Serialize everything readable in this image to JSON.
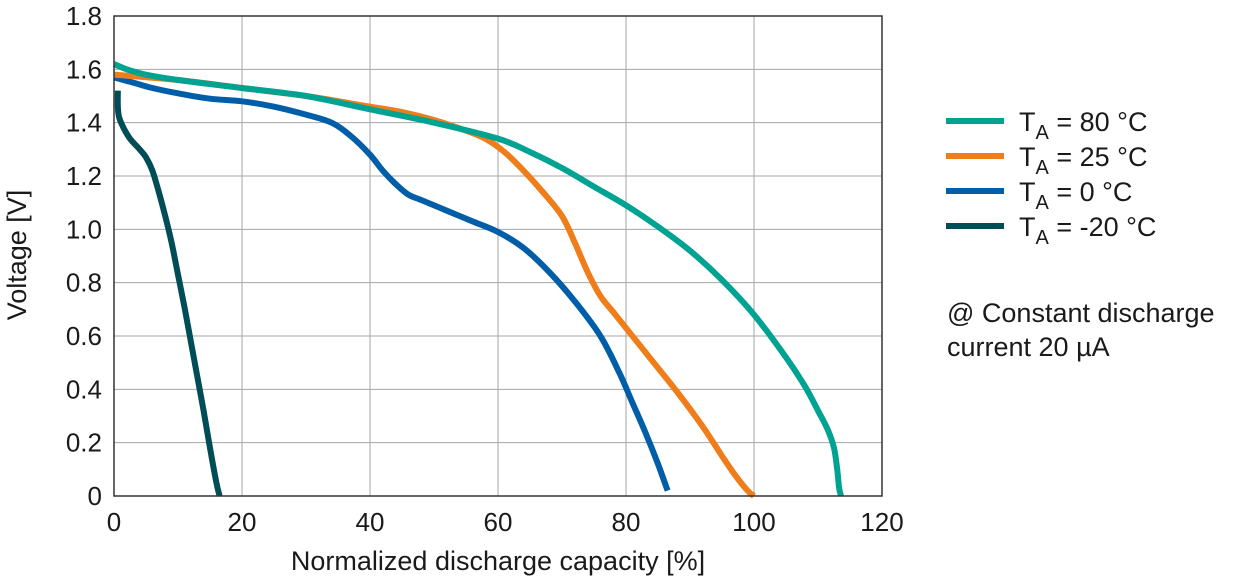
{
  "chart_data": {
    "type": "line",
    "title": "",
    "xlabel": "Normalized discharge capacity [%]",
    "ylabel": "Voltage [V]",
    "xlim": [
      0,
      120
    ],
    "ylim": [
      0,
      1.8
    ],
    "xticks": [
      0,
      20,
      40,
      60,
      80,
      100,
      120
    ],
    "yticks": [
      0,
      0.2,
      0.4,
      0.6,
      0.8,
      1.0,
      1.2,
      1.4,
      1.6,
      1.8
    ],
    "xtick_labels": [
      "0",
      "20",
      "40",
      "60",
      "80",
      "100",
      "120"
    ],
    "ytick_labels": [
      "0",
      "0.2",
      "0.4",
      "0.6",
      "0.8",
      "1.0",
      "1.2",
      "1.4",
      "1.6",
      "1.8"
    ],
    "grid": true,
    "legend_position": "right",
    "note": [
      "@ Constant discharge",
      "current 20 µA"
    ],
    "series": [
      {
        "name": "T_A = 80 °C",
        "label_main": "T",
        "label_sub": "A",
        "label_rest": " = 80 °C",
        "color": "#00a391",
        "x": [
          0,
          2,
          5,
          10,
          20,
          30,
          40,
          50,
          60,
          65,
          70,
          75,
          80,
          85,
          90,
          95,
          100,
          105,
          108,
          110,
          111.5,
          112.5,
          113,
          113.3,
          113.6
        ],
        "y": [
          1.62,
          1.6,
          1.58,
          1.56,
          1.53,
          1.5,
          1.45,
          1.4,
          1.34,
          1.29,
          1.23,
          1.16,
          1.09,
          1.01,
          0.92,
          0.81,
          0.68,
          0.52,
          0.41,
          0.32,
          0.25,
          0.18,
          0.1,
          0.03,
          0
        ],
        "smooth": true
      },
      {
        "name": "T_A = 25 °C",
        "label_main": "T",
        "label_sub": "A",
        "label_rest": " = 25 °C",
        "color": "#ef7d1a",
        "x": [
          0,
          10,
          20,
          30,
          40,
          45,
          50,
          55,
          58,
          61,
          64,
          67,
          70,
          72,
          74,
          76,
          78,
          80,
          84,
          88,
          92,
          95,
          97,
          99,
          100
        ],
        "y": [
          1.58,
          1.56,
          1.53,
          1.5,
          1.46,
          1.44,
          1.41,
          1.37,
          1.34,
          1.29,
          1.22,
          1.14,
          1.05,
          0.95,
          0.84,
          0.75,
          0.69,
          0.63,
          0.51,
          0.39,
          0.26,
          0.15,
          0.08,
          0.02,
          0
        ],
        "smooth": true
      },
      {
        "name": "T_A = 0 °C",
        "label_main": "T",
        "label_sub": "A",
        "label_rest": " = 0 °C",
        "color": "#005ea8",
        "x": [
          0,
          3,
          6,
          10,
          15,
          20,
          25,
          30,
          34,
          37,
          40,
          42,
          44,
          46,
          48,
          52,
          56,
          60,
          64,
          68,
          72,
          76,
          79,
          81,
          83,
          85,
          86.5
        ],
        "y": [
          1.57,
          1.55,
          1.53,
          1.51,
          1.49,
          1.48,
          1.46,
          1.43,
          1.4,
          1.35,
          1.28,
          1.22,
          1.17,
          1.13,
          1.11,
          1.07,
          1.03,
          0.99,
          0.93,
          0.84,
          0.73,
          0.6,
          0.46,
          0.35,
          0.24,
          0.12,
          0.02
        ],
        "smooth": true
      },
      {
        "name": "T_A = -20 °C",
        "label_main": "T",
        "label_sub": "A",
        "label_rest": " = -20 °C",
        "color": "#004d57",
        "x": [
          0.6,
          0.6,
          0.8,
          1.5,
          2.5,
          4,
          5,
          6,
          7,
          8,
          9,
          10,
          11,
          12,
          13,
          14,
          15,
          16,
          16.5
        ],
        "y": [
          1.52,
          1.46,
          1.42,
          1.38,
          1.34,
          1.3,
          1.27,
          1.22,
          1.14,
          1.05,
          0.95,
          0.83,
          0.71,
          0.58,
          0.45,
          0.32,
          0.18,
          0.05,
          0
        ],
        "smooth": true
      }
    ]
  }
}
